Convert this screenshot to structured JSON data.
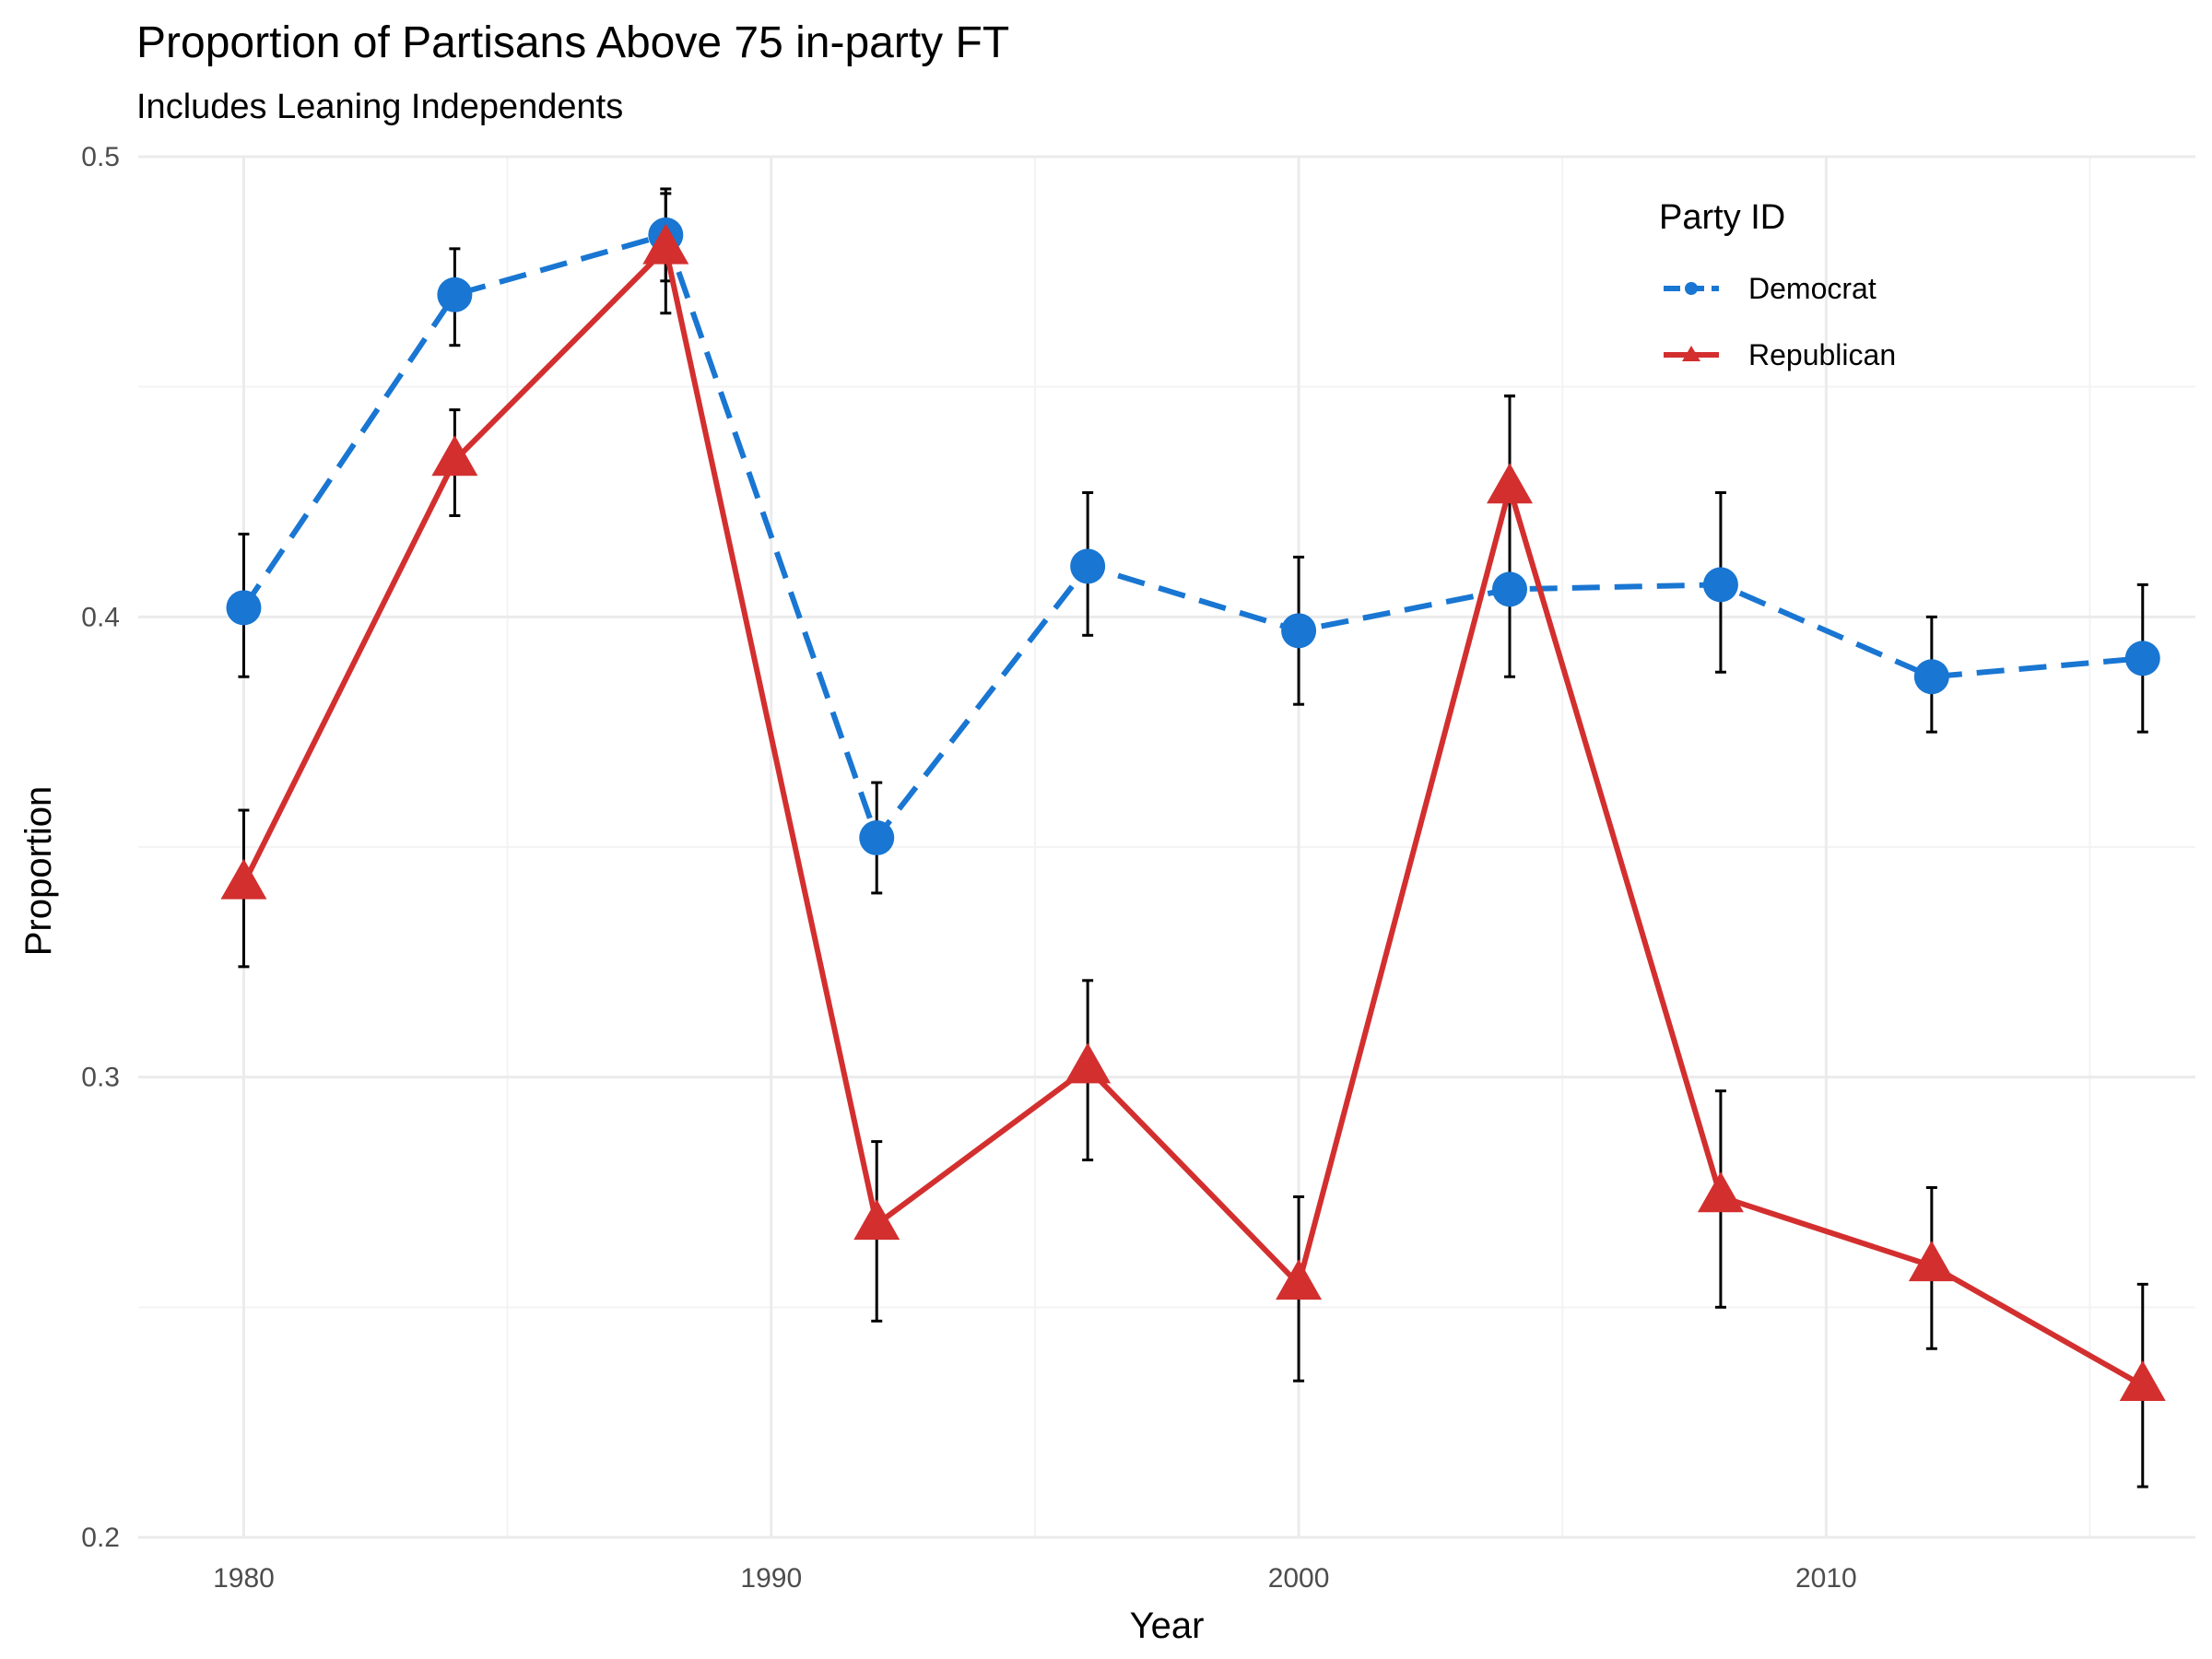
{
  "chart_data": {
    "type": "line",
    "title": "Proportion of Partisans Above 75 in-party FT",
    "subtitle": "Includes Leaning Independents",
    "xlabel": "Year",
    "ylabel": "Proportion",
    "xlim": [
      1978,
      2017
    ],
    "ylim": [
      0.2,
      0.5
    ],
    "x_ticks": [
      1980,
      1990,
      2000,
      2010
    ],
    "y_ticks": [
      0.2,
      0.3,
      0.4,
      0.5
    ],
    "x_tick_labels": [
      "1980",
      "1990",
      "2000",
      "2010"
    ],
    "y_tick_labels": [
      "0.2",
      "0.3",
      "0.4",
      "0.5"
    ],
    "grid": true,
    "legend": {
      "title": "Party ID",
      "placement": "top-right",
      "entries": [
        "Democrat",
        "Republican"
      ]
    },
    "x": [
      1980,
      1984,
      1988,
      1992,
      1996,
      2000,
      2004,
      2008,
      2012,
      2016
    ],
    "series": [
      {
        "name": "Democrat",
        "color": "#1976D2",
        "line": "dashed",
        "marker": "circle",
        "values": [
          0.402,
          0.47,
          0.483,
          0.352,
          0.411,
          0.397,
          0.406,
          0.407,
          0.387,
          0.391
        ],
        "error_low": [
          0.387,
          0.459,
          0.473,
          0.34,
          0.396,
          0.381,
          0.387,
          0.388,
          0.375,
          0.375
        ],
        "error_high": [
          0.418,
          0.48,
          0.493,
          0.364,
          0.427,
          0.413,
          0.448,
          0.427,
          0.4,
          0.407
        ]
      },
      {
        "name": "Republican",
        "color": "#D32F2F",
        "line": "solid",
        "marker": "triangle",
        "values": [
          0.342,
          0.434,
          0.48,
          0.268,
          0.302,
          0.255,
          0.428,
          0.274,
          0.259,
          0.233
        ],
        "error_low": [
          0.324,
          0.422,
          0.466,
          0.247,
          0.282,
          0.234,
          0.406,
          0.25,
          0.241,
          0.211
        ],
        "error_high": [
          0.358,
          0.445,
          0.492,
          0.286,
          0.321,
          0.274,
          0.448,
          0.297,
          0.276,
          0.255
        ]
      }
    ]
  }
}
